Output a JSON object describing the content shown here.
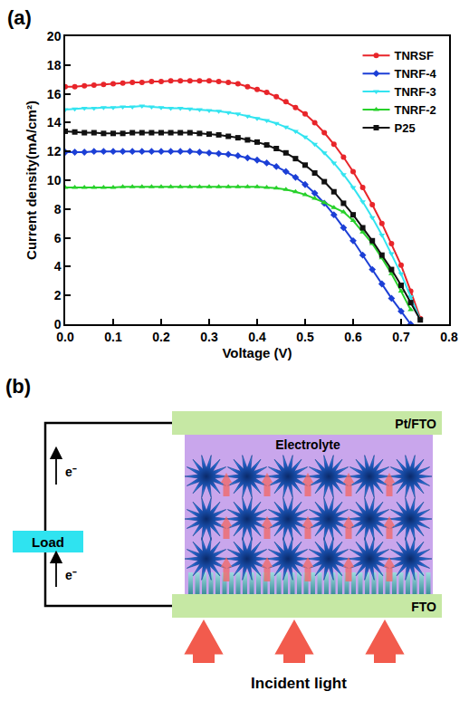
{
  "chart_data": {
    "type": "line",
    "label": "(a)",
    "x_label": "Voltage (V)",
    "y_label": "Current density(mA/cm²)",
    "x": [
      0,
      0.02,
      0.04,
      0.06,
      0.08,
      0.1,
      0.12,
      0.14,
      0.16,
      0.18,
      0.2,
      0.22,
      0.24,
      0.26,
      0.28,
      0.3,
      0.32,
      0.34,
      0.36,
      0.38,
      0.4,
      0.42,
      0.44,
      0.46,
      0.48,
      0.5,
      0.52,
      0.54,
      0.56,
      0.58,
      0.6,
      0.62,
      0.64,
      0.66,
      0.68,
      0.7,
      0.72,
      0.74
    ],
    "series": [
      {
        "name": "TNRSF",
        "color": "#e8252a",
        "marker": "circle",
        "values": [
          16.5,
          16.5,
          16.55,
          16.6,
          16.65,
          16.7,
          16.75,
          16.8,
          16.8,
          16.85,
          16.85,
          16.9,
          16.9,
          16.9,
          16.9,
          16.9,
          16.85,
          16.8,
          16.7,
          16.5,
          16.3,
          16.1,
          15.8,
          15.45,
          15.05,
          14.6,
          14.0,
          13.3,
          12.5,
          11.6,
          10.6,
          9.5,
          8.3,
          7.0,
          5.6,
          4.1,
          2.3,
          0.4
        ]
      },
      {
        "name": "TNRF-4",
        "color": "#1c3fd6",
        "marker": "diamond",
        "values": [
          11.95,
          11.95,
          11.95,
          12.0,
          12.0,
          12.0,
          12.0,
          12.0,
          12.0,
          12.0,
          12.0,
          12.0,
          12.0,
          12.0,
          11.95,
          11.9,
          11.85,
          11.8,
          11.7,
          11.55,
          11.4,
          11.2,
          10.95,
          10.6,
          10.2,
          9.7,
          9.1,
          8.4,
          7.6,
          6.7,
          5.8,
          4.8,
          3.8,
          2.8,
          1.8,
          0.9,
          0.0,
          null
        ]
      },
      {
        "name": "TNRF-3",
        "color": "#33e4f0",
        "marker": "triangle-down",
        "values": [
          14.9,
          14.95,
          15.0,
          15.0,
          15.05,
          15.05,
          15.1,
          15.1,
          15.15,
          15.1,
          15.05,
          15.0,
          15.0,
          14.95,
          14.9,
          14.85,
          14.8,
          14.7,
          14.6,
          14.45,
          14.3,
          14.15,
          13.95,
          13.7,
          13.4,
          13.0,
          12.5,
          11.9,
          11.2,
          10.4,
          9.5,
          8.5,
          7.4,
          6.2,
          4.9,
          3.5,
          1.9,
          0.3
        ]
      },
      {
        "name": "TNRF-2",
        "color": "#27d12a",
        "marker": "triangle-up",
        "values": [
          9.5,
          9.5,
          9.5,
          9.5,
          9.5,
          9.5,
          9.55,
          9.55,
          9.55,
          9.55,
          9.55,
          9.55,
          9.55,
          9.55,
          9.55,
          9.55,
          9.55,
          9.55,
          9.55,
          9.55,
          9.55,
          9.5,
          9.45,
          9.35,
          9.2,
          9.0,
          8.75,
          8.45,
          8.1,
          7.8,
          7.2,
          6.4,
          5.6,
          4.6,
          3.5,
          2.3,
          1.0,
          null
        ]
      },
      {
        "name": "P25",
        "color": "#111111",
        "marker": "square",
        "values": [
          13.4,
          13.35,
          13.3,
          13.3,
          13.25,
          13.25,
          13.25,
          13.3,
          13.3,
          13.3,
          13.3,
          13.3,
          13.3,
          13.3,
          13.25,
          13.2,
          13.15,
          13.05,
          12.95,
          12.8,
          12.65,
          12.45,
          12.2,
          11.9,
          11.5,
          11.05,
          10.5,
          9.9,
          9.2,
          8.4,
          7.6,
          6.7,
          5.8,
          4.8,
          3.8,
          2.7,
          1.5,
          0.3
        ]
      }
    ],
    "xlim": [
      0,
      0.8
    ],
    "xticks": [
      {
        "value": 0,
        "label": "0.0"
      },
      0.1,
      0.2,
      0.3,
      0.4,
      0.5,
      0.6,
      0.7,
      0.8
    ],
    "ylim": [
      0,
      20
    ],
    "yticks": [
      0,
      2,
      4,
      6,
      8,
      10,
      12,
      14,
      16,
      18,
      20
    ],
    "grid": false,
    "legend": "top right"
  },
  "diagram": {
    "label": "(b)",
    "top_electrode": "Pt/FTO",
    "electrolyte": "Electrolyte",
    "bottom_electrode": "FTO",
    "load": "Load",
    "electron": "e⁻",
    "light": "Incident light"
  }
}
